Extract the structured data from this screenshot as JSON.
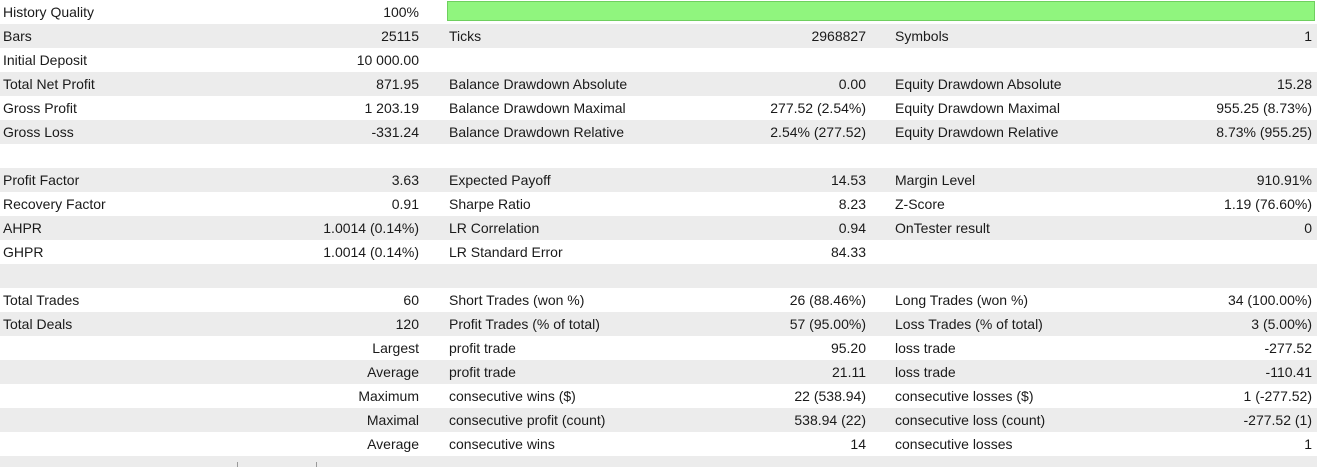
{
  "history_quality": {
    "label": "History Quality",
    "value": "100%",
    "bar_fraction": 1.0,
    "bar_color": "#90f57e"
  },
  "rows": [
    {
      "c1l": "Bars",
      "c1v": "25115",
      "c2l": "Ticks",
      "c2v": "2968827",
      "c3l": "Symbols",
      "c3v": "1"
    },
    {
      "c1l": "Initial Deposit",
      "c1v": "10 000.00",
      "c2l": "",
      "c2v": "",
      "c3l": "",
      "c3v": ""
    },
    {
      "c1l": "Total Net Profit",
      "c1v": "871.95",
      "c2l": "Balance Drawdown Absolute",
      "c2v": "0.00",
      "c3l": "Equity Drawdown Absolute",
      "c3v": "15.28"
    },
    {
      "c1l": "Gross Profit",
      "c1v": "1 203.19",
      "c2l": "Balance Drawdown Maximal",
      "c2v": "277.52 (2.54%)",
      "c3l": "Equity Drawdown Maximal",
      "c3v": "955.25 (8.73%)"
    },
    {
      "c1l": "Gross Loss",
      "c1v": "-331.24",
      "c2l": "Balance Drawdown Relative",
      "c2v": "2.54% (277.52)",
      "c3l": "Equity Drawdown Relative",
      "c3v": "8.73% (955.25)"
    },
    {
      "c1l": "",
      "c1v": "",
      "c2l": "",
      "c2v": "",
      "c3l": "",
      "c3v": ""
    },
    {
      "c1l": "Profit Factor",
      "c1v": "3.63",
      "c2l": "Expected Payoff",
      "c2v": "14.53",
      "c3l": "Margin Level",
      "c3v": "910.91%"
    },
    {
      "c1l": "Recovery Factor",
      "c1v": "0.91",
      "c2l": "Sharpe Ratio",
      "c2v": "8.23",
      "c3l": "Z-Score",
      "c3v": "1.19 (76.60%)"
    },
    {
      "c1l": "AHPR",
      "c1v": "1.0014 (0.14%)",
      "c2l": "LR Correlation",
      "c2v": "0.94",
      "c3l": "OnTester result",
      "c3v": "0"
    },
    {
      "c1l": "GHPR",
      "c1v": "1.0014 (0.14%)",
      "c2l": "LR Standard Error",
      "c2v": "84.33",
      "c3l": "",
      "c3v": ""
    },
    {
      "c1l": "",
      "c1v": "",
      "c2l": "",
      "c2v": "",
      "c3l": "",
      "c3v": ""
    },
    {
      "c1l": "Total Trades",
      "c1v": "60",
      "c2l": "Short Trades (won %)",
      "c2v": "26 (88.46%)",
      "c3l": "Long Trades (won %)",
      "c3v": "34 (100.00%)"
    },
    {
      "c1l": "Total Deals",
      "c1v": "120",
      "c2l": "Profit Trades (% of total)",
      "c2v": "57 (95.00%)",
      "c3l": "Loss Trades (% of total)",
      "c3v": "3 (5.00%)"
    },
    {
      "c1l": "",
      "c1v": "Largest",
      "c2l": "profit trade",
      "c2v": "95.20",
      "c3l": "loss trade",
      "c3v": "-277.52"
    },
    {
      "c1l": "",
      "c1v": "Average",
      "c2l": "profit trade",
      "c2v": "21.11",
      "c3l": "loss trade",
      "c3v": "-110.41"
    },
    {
      "c1l": "",
      "c1v": "Maximum",
      "c2l": "consecutive wins ($)",
      "c2v": "22 (538.94)",
      "c3l": "consecutive losses ($)",
      "c3v": "1 (-277.52)"
    },
    {
      "c1l": "",
      "c1v": "Maximal",
      "c2l": "consecutive profit (count)",
      "c2v": "538.94 (22)",
      "c3l": "consecutive loss (count)",
      "c3v": "-277.52 (1)"
    },
    {
      "c1l": "",
      "c1v": "Average",
      "c2l": "consecutive wins",
      "c2v": "14",
      "c3l": "consecutive losses",
      "c3v": "1"
    }
  ]
}
